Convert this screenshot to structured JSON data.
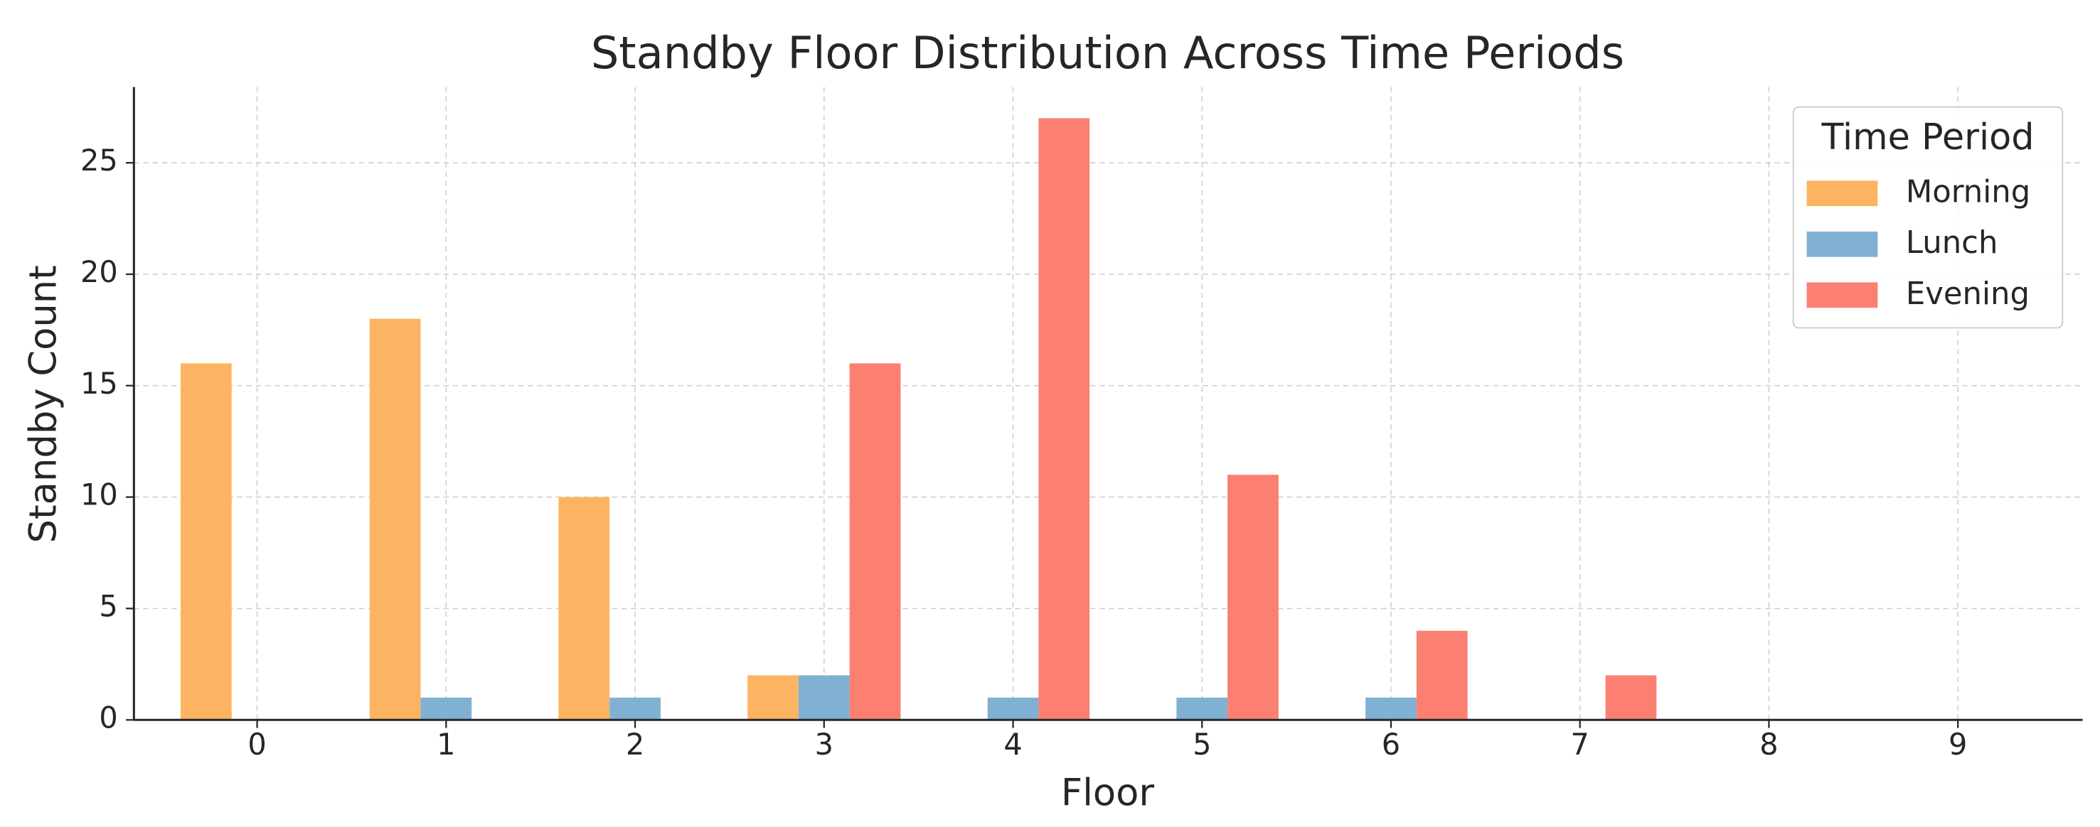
{
  "chart_data": {
    "type": "bar",
    "title": "Standby Floor Distribution Across Time Periods",
    "x_label": "Floor",
    "y_label": "Standby Count",
    "categories": [
      "0",
      "1",
      "2",
      "3",
      "4",
      "5",
      "6",
      "7",
      "8",
      "9"
    ],
    "series": [
      {
        "name": "Morning",
        "color": "#fdb462",
        "values": [
          16,
          18,
          10,
          2,
          0,
          0,
          0,
          0,
          0,
          0
        ]
      },
      {
        "name": "Lunch",
        "color": "#80b1d3",
        "values": [
          0,
          1,
          1,
          2,
          1,
          1,
          1,
          0,
          0,
          0
        ]
      },
      {
        "name": "Evening",
        "color": "#fb8072",
        "values": [
          0,
          0,
          0,
          16,
          27,
          11,
          4,
          2,
          0,
          0
        ]
      }
    ],
    "ylim": [
      0,
      28.4
    ],
    "yticks": [
      0,
      5,
      10,
      15,
      20,
      25
    ],
    "grid": true,
    "legend_title": "Time Period",
    "legend_position": "upper-right"
  }
}
